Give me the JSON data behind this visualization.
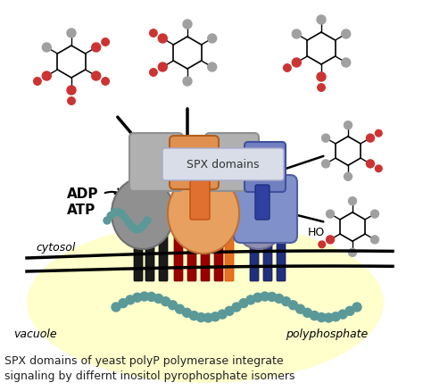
{
  "caption_line1": "SPX domains of yeast polyP polymerase integrate",
  "caption_line2": "signaling by differnt inositol pyrophosphate isomers",
  "bg_color": "#ffffff",
  "vacuole_color": "#ffffcc",
  "gray_sphere_color": "#a0a0a0",
  "red_sphere_color": "#cc3333",
  "teal_bead_color": "#5b9999",
  "spx_text": "SPX domains",
  "adp_label": "ADP",
  "atp_label": "ATP",
  "cytosol_label": "cytosol",
  "vacuole_label": "vacuole",
  "polyphosphate_label": "polyphosphate",
  "ho_label": "HO",
  "orange_domain_color": "#e8a060",
  "dark_red_color": "#990000",
  "orange_line_color": "#e87020",
  "dark_blue_line_color": "#203080"
}
